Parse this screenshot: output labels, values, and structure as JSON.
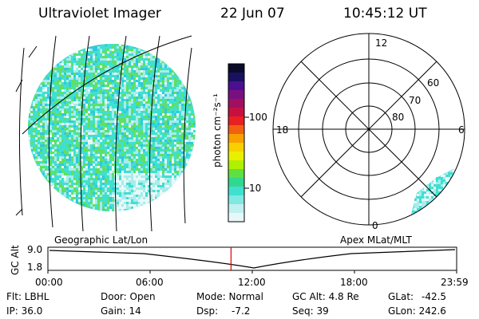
{
  "header": {
    "instrument": "Ultraviolet Imager",
    "date": "22 Jun 07",
    "time": "10:45:12 UT"
  },
  "colorbar": {
    "unit_label": "photon cm⁻²s⁻¹",
    "ticks": [
      "100",
      "10"
    ],
    "colors": [
      "#0a0a2a",
      "#1a1060",
      "#4a1090",
      "#7a1080",
      "#a01060",
      "#c81040",
      "#e82020",
      "#f06010",
      "#f8a000",
      "#f8d000",
      "#e8f000",
      "#b0f000",
      "#60e040",
      "#30d890",
      "#40e0d0",
      "#80e8e0",
      "#c0f0f0",
      "#e8f8f8"
    ]
  },
  "left_panel": {
    "label": "Geographic Lat/Lon",
    "fill_colors": [
      "#40e0d0",
      "#60e060",
      "#a8ecec",
      "#e8f8f8",
      "#30c8e0"
    ]
  },
  "right_panel": {
    "label": "Apex MLat/MLT",
    "mlat_labels": [
      "80",
      "70",
      "60"
    ],
    "mlt_labels": {
      "top": "12",
      "left": "18",
      "right": "6",
      "bottom": "0"
    }
  },
  "timeline": {
    "axis_label": "GC Alt",
    "y_ticks": [
      "9.0",
      "1.8"
    ],
    "x_ticks": [
      "00:00",
      "06:00",
      "12:00",
      "18:00",
      "23:59"
    ],
    "current_time_fraction": 0.448,
    "marker_color": "#e00000"
  },
  "info": {
    "flt": "Flt: LBHL",
    "ip": "IP: 36.0",
    "door": "Door: Open",
    "gain": "Gain: 14",
    "mode": "Mode: Normal",
    "dsp_label": "Dsp:",
    "dsp_value": "-7.2",
    "gcalt": "GC Alt: 4.8 Re",
    "seq": "Seq: 39",
    "glat_label": "GLat:",
    "glat_value": "-42.5",
    "glon": "GLon: 242.6"
  }
}
